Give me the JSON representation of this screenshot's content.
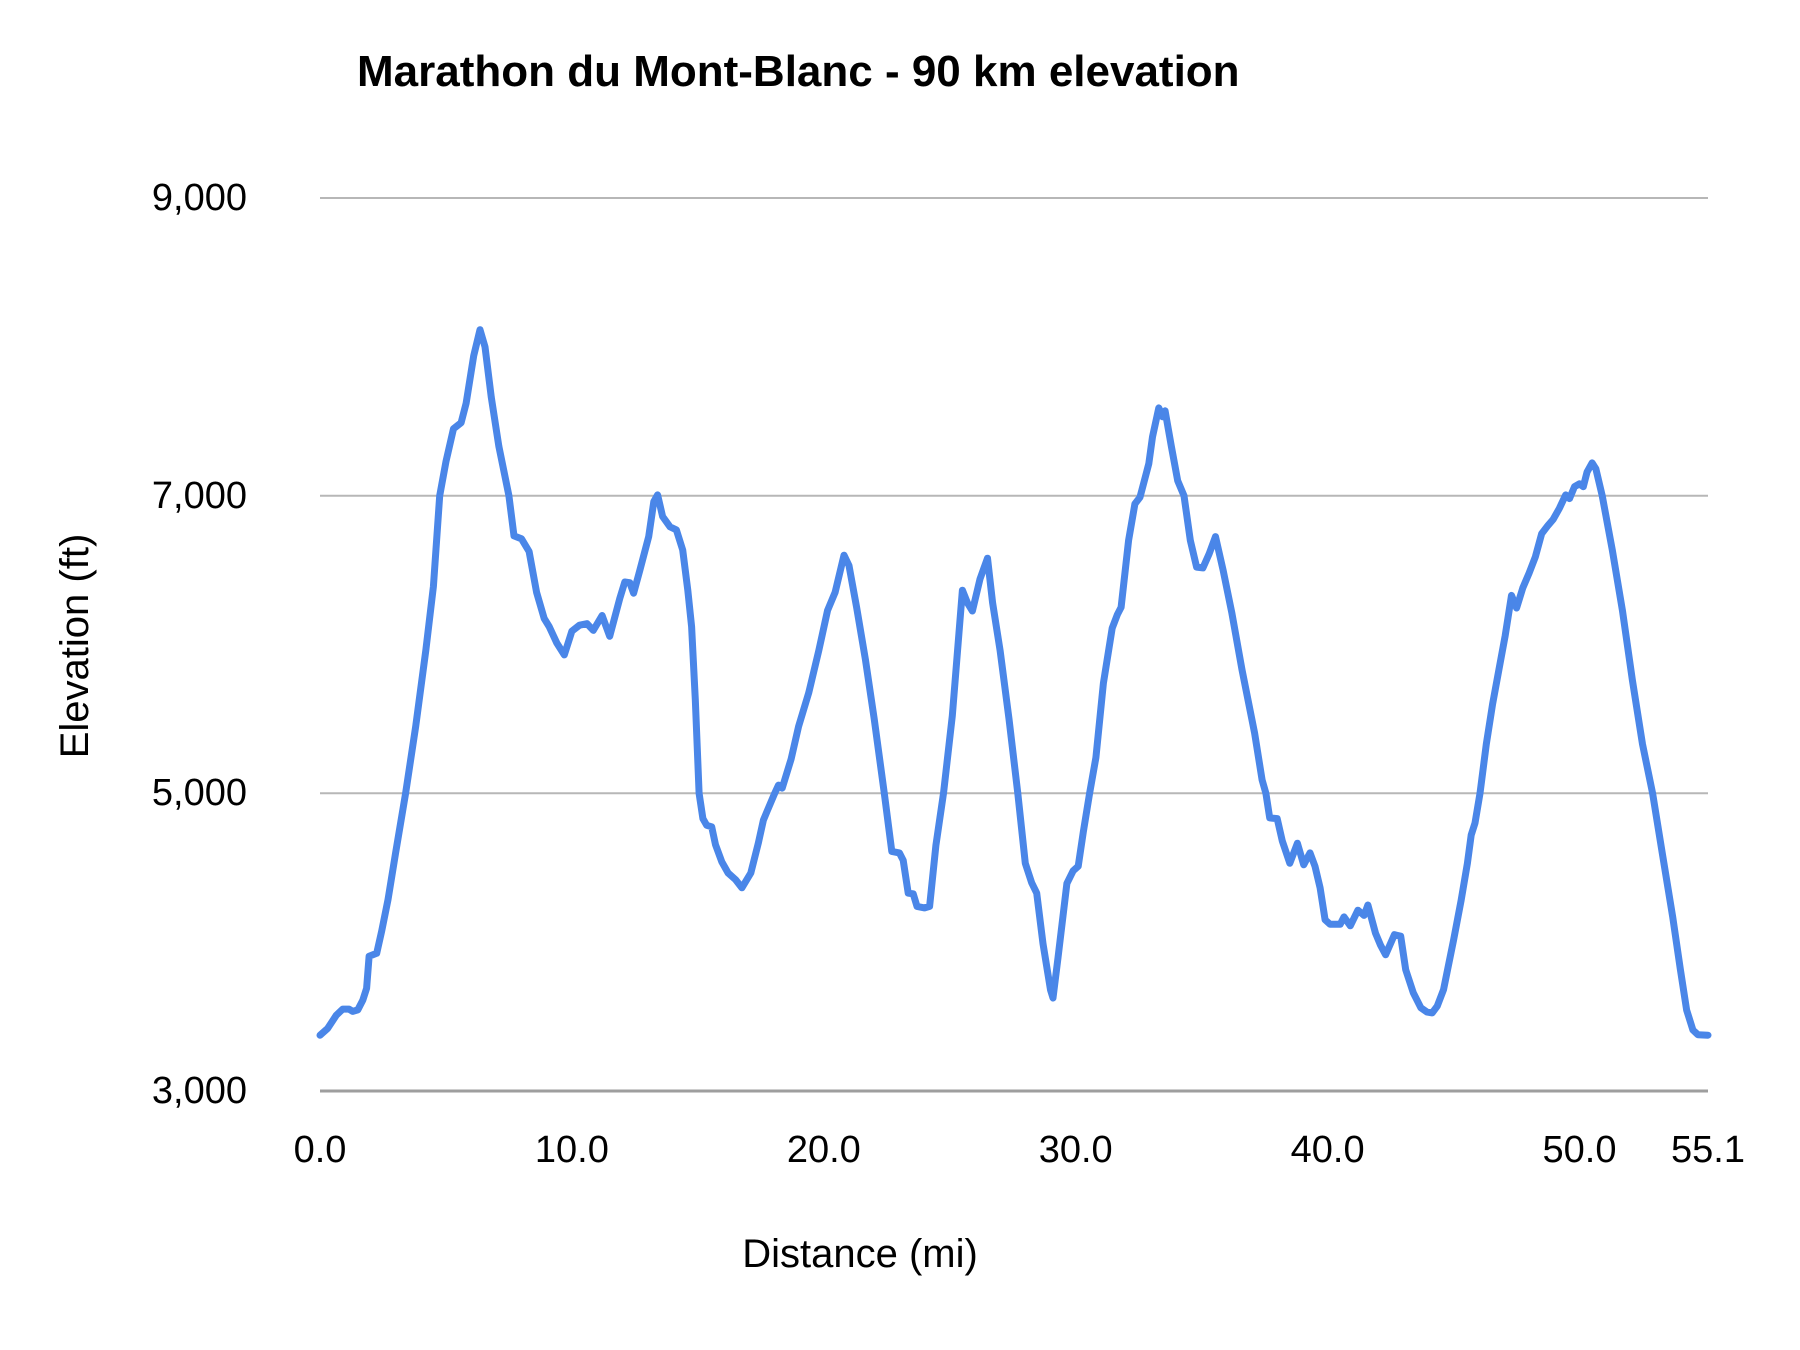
{
  "chart_data": {
    "type": "line",
    "title": "Marathon du Mont-Blanc - 90 km elevation",
    "xlabel": "Distance (mi)",
    "ylabel": "Elevation (ft)",
    "xlim": [
      0,
      55.1
    ],
    "ylim": [
      3000,
      9000
    ],
    "grid": "horizontal",
    "legend": "none",
    "line_color": "#4a86e8",
    "gridline_color": "#b7b7b7",
    "axisline_color": "#9e9e9e",
    "x_ticks": [
      {
        "value": 0,
        "label": "0.0"
      },
      {
        "value": 10,
        "label": "10.0"
      },
      {
        "value": 20,
        "label": "20.0"
      },
      {
        "value": 30,
        "label": "30.0"
      },
      {
        "value": 40,
        "label": "40.0"
      },
      {
        "value": 50,
        "label": "50.0"
      },
      {
        "value": 55.1,
        "label": "55.1"
      }
    ],
    "y_ticks": [
      {
        "value": 9000,
        "label": "9,000"
      },
      {
        "value": 7000,
        "label": "7,000"
      },
      {
        "value": 5000,
        "label": "5,000"
      },
      {
        "value": 3000,
        "label": "3,000"
      }
    ],
    "series": [
      {
        "name": "Elevation (ft)",
        "points": [
          [
            0,
            3375
          ],
          [
            0.3,
            3420
          ],
          [
            0.65,
            3510
          ],
          [
            0.9,
            3550
          ],
          [
            1.15,
            3550
          ],
          [
            1.3,
            3535
          ],
          [
            1.5,
            3545
          ],
          [
            1.7,
            3610
          ],
          [
            1.85,
            3690
          ],
          [
            1.95,
            3905
          ],
          [
            2.25,
            3925
          ],
          [
            2.45,
            4075
          ],
          [
            2.7,
            4285
          ],
          [
            3.0,
            4600
          ],
          [
            3.4,
            5000
          ],
          [
            3.8,
            5450
          ],
          [
            4.2,
            5960
          ],
          [
            4.5,
            6390
          ],
          [
            4.75,
            7000
          ],
          [
            5.0,
            7230
          ],
          [
            5.3,
            7450
          ],
          [
            5.6,
            7490
          ],
          [
            5.8,
            7620
          ],
          [
            6.1,
            7940
          ],
          [
            6.35,
            8115
          ],
          [
            6.55,
            8000
          ],
          [
            6.8,
            7660
          ],
          [
            7.1,
            7330
          ],
          [
            7.5,
            7000
          ],
          [
            7.7,
            6730
          ],
          [
            8.0,
            6710
          ],
          [
            8.3,
            6625
          ],
          [
            8.6,
            6350
          ],
          [
            8.9,
            6175
          ],
          [
            9.1,
            6120
          ],
          [
            9.4,
            6010
          ],
          [
            9.7,
            5930
          ],
          [
            10.0,
            6090
          ],
          [
            10.3,
            6130
          ],
          [
            10.6,
            6140
          ],
          [
            10.85,
            6095
          ],
          [
            11.2,
            6195
          ],
          [
            11.5,
            6055
          ],
          [
            11.9,
            6310
          ],
          [
            12.1,
            6420
          ],
          [
            12.3,
            6415
          ],
          [
            12.45,
            6345
          ],
          [
            12.7,
            6500
          ],
          [
            13.05,
            6725
          ],
          [
            13.25,
            6960
          ],
          [
            13.4,
            7005
          ],
          [
            13.6,
            6860
          ],
          [
            13.9,
            6790
          ],
          [
            14.15,
            6770
          ],
          [
            14.4,
            6635
          ],
          [
            14.6,
            6365
          ],
          [
            14.75,
            6120
          ],
          [
            14.9,
            5630
          ],
          [
            15.05,
            5000
          ],
          [
            15.2,
            4830
          ],
          [
            15.35,
            4785
          ],
          [
            15.55,
            4775
          ],
          [
            15.7,
            4655
          ],
          [
            15.95,
            4540
          ],
          [
            16.2,
            4465
          ],
          [
            16.5,
            4420
          ],
          [
            16.75,
            4365
          ],
          [
            17.1,
            4465
          ],
          [
            17.4,
            4665
          ],
          [
            17.6,
            4820
          ],
          [
            17.75,
            4880
          ],
          [
            18.05,
            5000
          ],
          [
            18.2,
            5055
          ],
          [
            18.35,
            5035
          ],
          [
            18.7,
            5230
          ],
          [
            19.0,
            5450
          ],
          [
            19.4,
            5675
          ],
          [
            19.8,
            5960
          ],
          [
            20.15,
            6230
          ],
          [
            20.45,
            6350
          ],
          [
            20.8,
            6600
          ],
          [
            21.0,
            6530
          ],
          [
            21.3,
            6250
          ],
          [
            21.65,
            5900
          ],
          [
            22.0,
            5500
          ],
          [
            22.4,
            5000
          ],
          [
            22.7,
            4610
          ],
          [
            23.0,
            4600
          ],
          [
            23.15,
            4550
          ],
          [
            23.35,
            4330
          ],
          [
            23.55,
            4325
          ],
          [
            23.7,
            4240
          ],
          [
            24.0,
            4230
          ],
          [
            24.2,
            4240
          ],
          [
            24.45,
            4650
          ],
          [
            24.75,
            5000
          ],
          [
            25.1,
            5520
          ],
          [
            25.5,
            6365
          ],
          [
            25.7,
            6280
          ],
          [
            25.9,
            6225
          ],
          [
            26.2,
            6440
          ],
          [
            26.5,
            6580
          ],
          [
            26.7,
            6280
          ],
          [
            27.0,
            5960
          ],
          [
            27.35,
            5500
          ],
          [
            27.7,
            5000
          ],
          [
            28.0,
            4530
          ],
          [
            28.25,
            4400
          ],
          [
            28.45,
            4330
          ],
          [
            28.7,
            3990
          ],
          [
            29.0,
            3680
          ],
          [
            29.1,
            3625
          ],
          [
            29.3,
            3900
          ],
          [
            29.65,
            4395
          ],
          [
            29.9,
            4480
          ],
          [
            30.1,
            4510
          ],
          [
            30.3,
            4740
          ],
          [
            30.55,
            5000
          ],
          [
            30.8,
            5240
          ],
          [
            31.1,
            5740
          ],
          [
            31.45,
            6110
          ],
          [
            31.65,
            6200
          ],
          [
            31.8,
            6250
          ],
          [
            32.1,
            6700
          ],
          [
            32.35,
            6945
          ],
          [
            32.55,
            6990
          ],
          [
            32.9,
            7215
          ],
          [
            33.05,
            7395
          ],
          [
            33.3,
            7590
          ],
          [
            33.45,
            7530
          ],
          [
            33.55,
            7570
          ],
          [
            33.8,
            7330
          ],
          [
            34.05,
            7100
          ],
          [
            34.3,
            7000
          ],
          [
            34.55,
            6700
          ],
          [
            34.8,
            6520
          ],
          [
            35.05,
            6515
          ],
          [
            35.3,
            6610
          ],
          [
            35.55,
            6725
          ],
          [
            35.85,
            6500
          ],
          [
            36.2,
            6210
          ],
          [
            36.6,
            5830
          ],
          [
            37.1,
            5405
          ],
          [
            37.4,
            5090
          ],
          [
            37.55,
            5000
          ],
          [
            37.7,
            4835
          ],
          [
            38.0,
            4830
          ],
          [
            38.2,
            4680
          ],
          [
            38.5,
            4530
          ],
          [
            38.8,
            4665
          ],
          [
            39.05,
            4520
          ],
          [
            39.3,
            4600
          ],
          [
            39.5,
            4510
          ],
          [
            39.7,
            4365
          ],
          [
            39.9,
            4150
          ],
          [
            40.1,
            4120
          ],
          [
            40.5,
            4120
          ],
          [
            40.65,
            4170
          ],
          [
            40.9,
            4110
          ],
          [
            41.2,
            4215
          ],
          [
            41.45,
            4180
          ],
          [
            41.6,
            4250
          ],
          [
            41.9,
            4060
          ],
          [
            42.1,
            3980
          ],
          [
            42.3,
            3915
          ],
          [
            42.65,
            4050
          ],
          [
            42.9,
            4040
          ],
          [
            43.1,
            3815
          ],
          [
            43.4,
            3660
          ],
          [
            43.7,
            3560
          ],
          [
            43.95,
            3530
          ],
          [
            44.15,
            3525
          ],
          [
            44.35,
            3570
          ],
          [
            44.6,
            3680
          ],
          [
            45.0,
            4015
          ],
          [
            45.3,
            4280
          ],
          [
            45.55,
            4530
          ],
          [
            45.7,
            4720
          ],
          [
            45.85,
            4800
          ],
          [
            46.05,
            5000
          ],
          [
            46.3,
            5330
          ],
          [
            46.55,
            5600
          ],
          [
            46.8,
            5830
          ],
          [
            47.05,
            6060
          ],
          [
            47.3,
            6330
          ],
          [
            47.5,
            6245
          ],
          [
            47.75,
            6380
          ],
          [
            48.0,
            6480
          ],
          [
            48.25,
            6590
          ],
          [
            48.5,
            6745
          ],
          [
            48.75,
            6800
          ],
          [
            48.95,
            6840
          ],
          [
            49.2,
            6915
          ],
          [
            49.45,
            7005
          ],
          [
            49.6,
            6980
          ],
          [
            49.8,
            7060
          ],
          [
            50.0,
            7080
          ],
          [
            50.15,
            7060
          ],
          [
            50.3,
            7160
          ],
          [
            50.5,
            7220
          ],
          [
            50.65,
            7180
          ],
          [
            50.9,
            7000
          ],
          [
            51.3,
            6635
          ],
          [
            51.7,
            6230
          ],
          [
            52.1,
            5760
          ],
          [
            52.5,
            5330
          ],
          [
            52.9,
            5000
          ],
          [
            53.3,
            4580
          ],
          [
            53.7,
            4170
          ],
          [
            54.0,
            3820
          ],
          [
            54.25,
            3545
          ],
          [
            54.5,
            3410
          ],
          [
            54.7,
            3378
          ],
          [
            55.1,
            3375
          ]
        ]
      }
    ]
  }
}
